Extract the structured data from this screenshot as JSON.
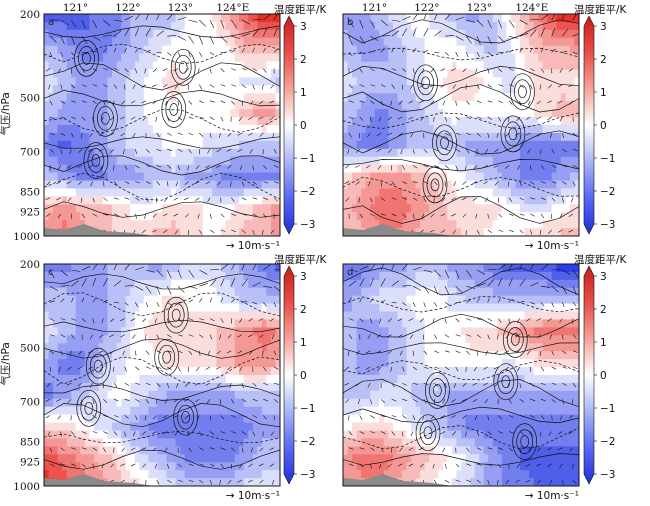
{
  "chart_data": {
    "type": "heatmap",
    "layout": "2x2",
    "panels": [
      {
        "letter": "a",
        "show_x_ticks": true,
        "show_y_ticks": true,
        "colorbar_title": "温度距平/K",
        "ref_arrow_label": "→ 10m·s⁻¹",
        "anomaly_rows": [
          [
            -2.5,
            -2.5,
            -2.5,
            -2,
            -2,
            -1,
            -1,
            -1,
            0,
            0,
            1,
            2,
            3,
            3
          ],
          [
            -1,
            -1.5,
            -2,
            -2,
            -1.5,
            -1,
            -0.5,
            0,
            0,
            0,
            0,
            1,
            1,
            1
          ],
          [
            -0.5,
            -1,
            -1.5,
            -1.5,
            -1,
            -0.5,
            0,
            0.5,
            0,
            0,
            0,
            -0.5,
            -0.5,
            -1
          ],
          [
            -1,
            -1.5,
            -1.5,
            -1.5,
            -1,
            -0.5,
            0,
            0,
            0,
            0,
            0,
            1,
            1.5,
            1
          ],
          [
            -2,
            -2.5,
            -2,
            -1.5,
            -1,
            -0.5,
            -0.5,
            0,
            0,
            -0.5,
            -0.5,
            -1,
            -1,
            -1
          ],
          [
            -1,
            -1.5,
            -2,
            -2,
            -1.5,
            -1.5,
            -1,
            -1,
            -1.5,
            -1.5,
            -2,
            -2,
            -2,
            -2
          ],
          [
            1,
            1.5,
            1,
            1,
            0.5,
            0,
            0,
            0.5,
            0.5,
            0,
            0,
            0.5,
            1,
            1.5
          ],
          [
            1.5,
            2,
            1.5,
            1,
            0.5,
            0.5,
            1,
            1,
            0.5,
            0,
            0.5,
            1,
            1,
            1.5
          ]
        ]
      },
      {
        "letter": "b",
        "show_x_ticks": true,
        "show_y_ticks": false,
        "colorbar_title": "温度距平/K",
        "ref_arrow_label": "→ 10m·s⁻¹",
        "anomaly_rows": [
          [
            -1.5,
            -1.5,
            -1,
            -0.5,
            0,
            -0.5,
            -1,
            -1.5,
            -1,
            0,
            1,
            2,
            3,
            3
          ],
          [
            -1,
            -1.5,
            -1.5,
            -1,
            -0.5,
            0,
            0,
            -0.5,
            -1,
            -0.5,
            0.5,
            1,
            1,
            1.5
          ],
          [
            -0.5,
            -1,
            -1,
            -1,
            -0.5,
            0,
            0.5,
            0.5,
            0,
            -0.5,
            0,
            0.5,
            0.5,
            0
          ],
          [
            -1,
            -1.5,
            -2,
            -1.5,
            -1,
            -0.5,
            0,
            0,
            0,
            0,
            0,
            0.5,
            1,
            1
          ],
          [
            -1.5,
            -2,
            -2,
            -1.5,
            -1,
            -1,
            -1,
            -1.5,
            -1.5,
            -1.5,
            -2,
            -2,
            -2,
            -2
          ],
          [
            0.5,
            1,
            1.5,
            1.5,
            1,
            0.5,
            0,
            -0.5,
            -1,
            -1.5,
            -2,
            -2,
            -1.5,
            -1
          ],
          [
            1,
            1.5,
            2,
            2,
            1.5,
            1,
            0.5,
            0.5,
            0.5,
            0,
            -0.5,
            -0.5,
            0,
            0.5
          ],
          [
            0.5,
            1,
            1.5,
            1.5,
            1,
            1,
            1,
            0.5,
            0,
            0,
            0.5,
            1,
            1,
            1
          ]
        ]
      },
      {
        "letter": "c",
        "show_x_ticks": false,
        "show_y_ticks": true,
        "colorbar_title": "温度距平/K",
        "ref_arrow_label": "→ 10m·s⁻¹",
        "anomaly_rows": [
          [
            -2,
            -2,
            -1.5,
            -1.5,
            -1,
            -1,
            -1.5,
            -1,
            -0.5,
            -0.5,
            -1,
            -1.5,
            -2,
            -2.5
          ],
          [
            -1,
            -1,
            -1.5,
            -1.5,
            -1,
            -0.5,
            0,
            0.5,
            0,
            0,
            -0.5,
            -1,
            -1,
            -1
          ],
          [
            -0.5,
            -1,
            -1.5,
            -1.5,
            -1,
            0,
            0.5,
            0.5,
            0.5,
            0.5,
            1,
            1.5,
            2,
            1.5
          ],
          [
            -1.5,
            -2,
            -2,
            -1,
            -0.5,
            0,
            0,
            0.5,
            0.5,
            0.5,
            1,
            1.5,
            1.5,
            1
          ],
          [
            -2,
            -1.5,
            -1,
            -0.5,
            0,
            -0.5,
            -1,
            -1.5,
            -1.5,
            -1.5,
            -1.5,
            -1,
            -1,
            -1
          ],
          [
            0.5,
            0.5,
            0,
            -0.5,
            -1,
            -1.5,
            -2,
            -2,
            -2,
            -2,
            -2,
            -2,
            -1.5,
            -1.5
          ],
          [
            2.5,
            2,
            1.5,
            1,
            0.5,
            -0.5,
            -1,
            -1.5,
            -2,
            -2,
            -2,
            -1.5,
            -1,
            -1
          ],
          [
            3,
            2.5,
            2,
            1.5,
            1,
            0.5,
            0,
            -0.5,
            -1,
            -1,
            -1,
            -0.5,
            -0.5,
            0
          ]
        ]
      },
      {
        "letter": "d",
        "show_x_ticks": false,
        "show_y_ticks": false,
        "colorbar_title": "温度距平/K",
        "ref_arrow_label": "→ 10m·s⁻¹",
        "anomaly_rows": [
          [
            -2,
            -2,
            -1.5,
            -1.5,
            -1,
            -1,
            -1.5,
            -1.5,
            -2,
            -2.5,
            -2.5,
            -2.5,
            -3,
            -3
          ],
          [
            -1.5,
            -1,
            -0.5,
            -0.5,
            0,
            0,
            -0.5,
            -1,
            -1,
            -1,
            -1,
            -1,
            -1,
            -1
          ],
          [
            -1,
            -1.5,
            -1.5,
            -1,
            -0.5,
            0,
            0,
            0.5,
            0.5,
            1,
            1.5,
            2,
            2,
            2
          ],
          [
            -1,
            -1.5,
            -1.5,
            -1,
            -0.5,
            0,
            0,
            0,
            0,
            -0.5,
            0,
            0.5,
            0.5,
            0.5
          ],
          [
            -1,
            -1,
            -0.5,
            -0.5,
            -1,
            -1,
            -1.5,
            -1.5,
            -1.5,
            -1.5,
            -1.5,
            -1.5,
            -1.5,
            -1.5
          ],
          [
            0,
            0.5,
            0.5,
            0,
            -0.5,
            -1,
            -1.5,
            -2,
            -2,
            -2,
            -2,
            -2,
            -2,
            -2
          ],
          [
            1.5,
            2,
            2,
            1.5,
            1,
            0.5,
            0,
            -0.5,
            -1.5,
            -2,
            -2.5,
            -2.5,
            -2.5,
            -2.5
          ],
          [
            1,
            1.5,
            1.5,
            1,
            0.5,
            0,
            -0.5,
            -1,
            -1.5,
            -2,
            -2,
            -2.5,
            -2.5,
            -2.5
          ]
        ]
      }
    ],
    "x_ticks": [
      "121°",
      "122°",
      "123°",
      "124°E"
    ],
    "x_tick_values": [
      121,
      122,
      123,
      124
    ],
    "x_range": [
      120.4,
      124.9
    ],
    "y_axis_label": "气压/hPa",
    "y_ticks": [
      "200",
      "500",
      "700",
      "850",
      "925",
      "1000"
    ],
    "y_tick_values": [
      200,
      500,
      700,
      850,
      925,
      1000
    ],
    "y_range": [
      1000,
      200
    ],
    "colorbar_ticks": [
      "3",
      "2",
      "1",
      "0",
      "−1",
      "−2",
      "−3"
    ],
    "colorbar_values": [
      3,
      2,
      1,
      0,
      -1,
      -2,
      -3
    ],
    "colorbar_range": [
      -3,
      3
    ],
    "colors": {
      "warm_max": "#e8302c",
      "neutral": "#ffffff",
      "cold_max": "#2d3fe6",
      "terrain": "#8a8a8a",
      "contour": "#111111",
      "wind": "#111111"
    }
  }
}
